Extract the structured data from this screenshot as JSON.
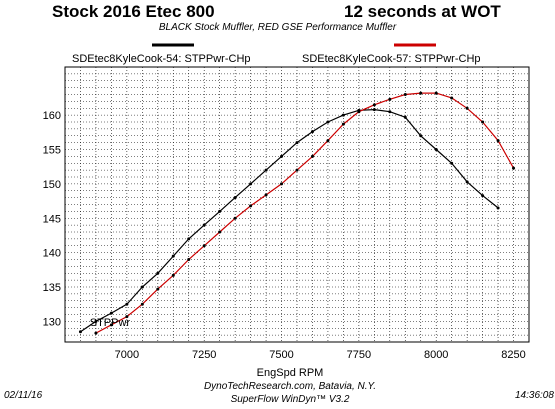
{
  "header": {
    "title_left": "Stock 2016 Etec 800",
    "title_right": "12 seconds at WOT",
    "subtitle": "BLACK Stock Muffler, RED GSE Performance Muffler"
  },
  "footer": {
    "date": "02/11/16",
    "time": "14:36:08",
    "line1": "DynoTechResearch.com, Batavia, N.Y.",
    "line2": "SuperFlow WinDyn™ V3.2"
  },
  "chart_data": {
    "type": "line",
    "xlabel": "EngSpd RPM",
    "ylabel": "",
    "xlim": [
      6800,
      8300
    ],
    "ylim": [
      127,
      167
    ],
    "xticks": [
      7000,
      7250,
      7500,
      7750,
      8000,
      8250
    ],
    "yticks": [
      130,
      135,
      140,
      145,
      150,
      155,
      160
    ],
    "grid": true,
    "annotation": "STPPwr",
    "legend_placement": "top",
    "series": [
      {
        "name": "SDEtec8KyleCook-54: STPPwr-CHp",
        "color": "#000000",
        "x": [
          6850,
          6900,
          6950,
          7000,
          7050,
          7100,
          7150,
          7200,
          7250,
          7300,
          7350,
          7400,
          7450,
          7500,
          7550,
          7600,
          7650,
          7700,
          7750,
          7800,
          7850,
          7900,
          7950,
          8000,
          8050,
          8100,
          8150,
          8200
        ],
        "values": [
          128.5,
          130.0,
          131.2,
          132.5,
          135.0,
          137.0,
          139.5,
          142.0,
          144.0,
          146.0,
          148.0,
          150.0,
          152.0,
          154.0,
          156.0,
          157.6,
          159.0,
          160.0,
          160.7,
          160.8,
          160.5,
          159.7,
          157.0,
          155.0,
          153.0,
          150.3,
          148.3,
          146.5
        ]
      },
      {
        "name": "SDEtec8KyleCook-57: STPPwr-CHp",
        "color": "#cc0000",
        "x": [
          6900,
          6950,
          7000,
          7050,
          7100,
          7150,
          7200,
          7250,
          7300,
          7350,
          7400,
          7450,
          7500,
          7550,
          7600,
          7650,
          7700,
          7750,
          7800,
          7850,
          7900,
          7950,
          8000,
          8050,
          8100,
          8150,
          8200,
          8250
        ],
        "values": [
          128.3,
          129.5,
          130.7,
          132.5,
          134.7,
          136.7,
          139.0,
          141.0,
          143.0,
          145.0,
          146.8,
          148.4,
          150.0,
          152.0,
          154.0,
          156.3,
          158.7,
          160.5,
          161.5,
          162.3,
          163.0,
          163.2,
          163.2,
          162.5,
          161.0,
          159.0,
          156.3,
          152.3
        ]
      }
    ]
  }
}
